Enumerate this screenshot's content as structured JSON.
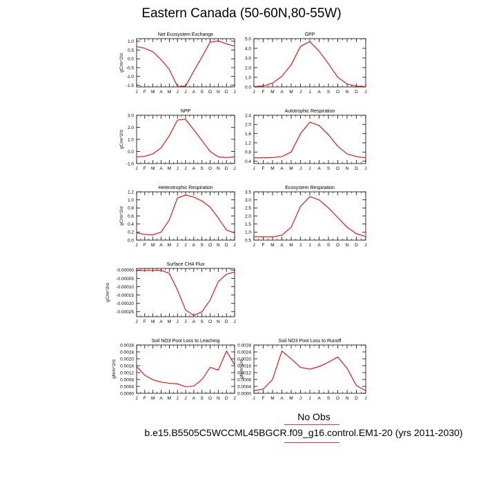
{
  "title": "Eastern Canada (50-60N,80-55W)",
  "legend": {
    "label": "No Obs",
    "line_color": "#e03030"
  },
  "case_label": "b.e15.B5505C5WCCML45BGCR.f09_g16.control.EM1-20 (yrs 2011-2030)",
  "colors": {
    "series": "#ee0000",
    "axis": "#000000"
  },
  "chart_data": [
    {
      "type": "line",
      "title": "Net Ecosystem Exchange",
      "ylabel": "gC/m^2/d",
      "categories": [
        "J",
        "F",
        "M",
        "A",
        "M",
        "J",
        "J",
        "A",
        "S",
        "O",
        "N",
        "D",
        "J"
      ],
      "ylim": [
        -1.6,
        1.15
      ],
      "yticks": [
        "1.0",
        "0.5",
        "0.0",
        "-0.5",
        "-1.0",
        "-1.5"
      ],
      "ytick_values": [
        1.0,
        0.5,
        0.0,
        -0.5,
        -1.0,
        -1.5
      ],
      "values": [
        0.7,
        0.6,
        0.4,
        -0.05,
        -0.6,
        -1.58,
        -1.55,
        -0.7,
        0.1,
        0.95,
        1.02,
        0.85,
        0.72
      ]
    },
    {
      "type": "line",
      "title": "GPP",
      "ylabel": "",
      "categories": [
        "J",
        "F",
        "M",
        "A",
        "M",
        "J",
        "J",
        "A",
        "S",
        "O",
        "N",
        "D",
        "J"
      ],
      "ylim": [
        0,
        5.0
      ],
      "yticks": [
        "5.0",
        "4.0",
        "3.0",
        "2.0",
        "1.0",
        "0.0"
      ],
      "ytick_values": [
        5.0,
        4.0,
        3.0,
        2.0,
        1.0,
        0.0
      ],
      "values": [
        0.02,
        0.1,
        0.4,
        1.1,
        2.3,
        4.2,
        4.7,
        3.7,
        2.4,
        1.0,
        0.3,
        0.08,
        0.03
      ]
    },
    {
      "type": "line",
      "title": "NPP",
      "ylabel": "gC/m^2/d",
      "categories": [
        "J",
        "F",
        "M",
        "A",
        "M",
        "J",
        "J",
        "A",
        "S",
        "O",
        "N",
        "D",
        "J"
      ],
      "ylim": [
        -1.0,
        3.0
      ],
      "yticks": [
        "3.0",
        "2.0",
        "1.0",
        "0.0",
        "-1.0"
      ],
      "ytick_values": [
        3.0,
        2.0,
        1.0,
        0.0,
        -1.0
      ],
      "values": [
        -0.45,
        -0.4,
        -0.2,
        0.3,
        1.3,
        2.6,
        2.65,
        1.8,
        0.9,
        0.0,
        -0.45,
        -0.5,
        -0.45
      ]
    },
    {
      "type": "line",
      "title": "Autotrophic Respiration",
      "ylabel": "",
      "categories": [
        "J",
        "F",
        "M",
        "A",
        "M",
        "J",
        "J",
        "A",
        "S",
        "O",
        "N",
        "D",
        "J"
      ],
      "ylim": [
        0.3,
        2.4
      ],
      "yticks": [
        "2.4",
        "2.0",
        "1.6",
        "1.2",
        "0.8",
        "0.4"
      ],
      "ytick_values": [
        2.4,
        2.0,
        1.6,
        1.2,
        0.8,
        0.4
      ],
      "values": [
        0.55,
        0.55,
        0.56,
        0.6,
        0.8,
        1.6,
        2.1,
        1.95,
        1.55,
        1.05,
        0.72,
        0.6,
        0.55
      ]
    },
    {
      "type": "line",
      "title": "Heterotrophic Respiration",
      "ylabel": "gC/m^2/d",
      "categories": [
        "J",
        "F",
        "M",
        "A",
        "M",
        "J",
        "J",
        "A",
        "S",
        "O",
        "N",
        "D",
        "J"
      ],
      "ylim": [
        0.0,
        1.2
      ],
      "yticks": [
        "1.2",
        "1.0",
        "0.8",
        "0.6",
        "0.4",
        "0.2",
        "0.0"
      ],
      "ytick_values": [
        1.2,
        1.0,
        0.8,
        0.6,
        0.4,
        0.2,
        0.0
      ],
      "values": [
        0.18,
        0.14,
        0.13,
        0.2,
        0.5,
        1.05,
        1.12,
        1.07,
        0.97,
        0.82,
        0.55,
        0.25,
        0.18
      ]
    },
    {
      "type": "line",
      "title": "Ecosystem Respiration",
      "ylabel": "",
      "categories": [
        "J",
        "F",
        "M",
        "A",
        "M",
        "J",
        "J",
        "A",
        "S",
        "O",
        "N",
        "D",
        "J"
      ],
      "ylim": [
        0.5,
        3.5
      ],
      "yticks": [
        "3.5",
        "3.0",
        "2.5",
        "2.0",
        "1.5",
        "1.0",
        "0.5"
      ],
      "ytick_values": [
        3.5,
        3.0,
        2.5,
        2.0,
        1.5,
        1.0,
        0.5
      ],
      "values": [
        0.72,
        0.7,
        0.7,
        0.8,
        1.3,
        2.6,
        3.2,
        3.0,
        2.5,
        1.9,
        1.3,
        0.9,
        0.72
      ]
    },
    {
      "type": "line",
      "title": "Surface CH4 Flux",
      "ylabel": "gC/m^2/d",
      "categories": [
        "J",
        "F",
        "M",
        "A",
        "M",
        "J",
        "J",
        "A",
        "S",
        "O",
        "N",
        "D",
        "J"
      ],
      "ylim": [
        -0.00028,
        1e-05
      ],
      "yticks": [
        "-0.00000",
        "-0.00005",
        "-0.00010",
        "-0.00015",
        "-0.00020",
        "-0.00025"
      ],
      "ytick_values": [
        0,
        -5e-05,
        -0.0001,
        -0.00015,
        -0.0002,
        -0.00025
      ],
      "values": [
        -2e-06,
        -2e-06,
        -2e-06,
        -1e-06,
        -2e-05,
        -0.00012,
        -0.00024,
        -0.000273,
        -0.00025,
        -0.00018,
        -7e-05,
        -2.5e-05,
        -1.2e-05
      ]
    },
    {
      "type": "line",
      "title": "Soil NO3 Pool Loss to Leaching",
      "ylabel": "gN/m^2/d",
      "categories": [
        "J",
        "F",
        "M",
        "A",
        "M",
        "J",
        "J",
        "A",
        "S",
        "O",
        "N",
        "D",
        "J"
      ],
      "ylim": [
        0.0,
        0.0028
      ],
      "yticks": [
        "0.0028",
        "0.0024",
        "0.0020",
        "0.0016",
        "0.0012",
        "0.0008",
        "0.0004",
        "0.0000"
      ],
      "ytick_values": [
        0.0028,
        0.0024,
        0.002,
        0.0016,
        0.0012,
        0.0008,
        0.0004,
        0.0
      ],
      "values": [
        0.00155,
        0.00105,
        0.00078,
        0.00065,
        0.00058,
        0.00055,
        0.00038,
        0.00042,
        0.0008,
        0.0015,
        0.00135,
        0.00245,
        0.00165
      ]
    },
    {
      "type": "line",
      "title": "Soil NO3 Pool Loss to Runoff",
      "ylabel": "gN/m^2/d",
      "categories": [
        "J",
        "F",
        "M",
        "A",
        "M",
        "J",
        "J",
        "A",
        "S",
        "O",
        "N",
        "D",
        "J"
      ],
      "ylim": [
        0.0,
        0.0028
      ],
      "yticks": [
        "0.0028",
        "0.0024",
        "0.0020",
        "0.0016",
        "0.0012",
        "0.0008",
        "0.0004",
        "0.0000"
      ],
      "ytick_values": [
        0.0028,
        0.0024,
        0.002,
        0.0016,
        0.0012,
        0.0008,
        0.0004,
        0.0
      ],
      "values": [
        0.00015,
        0.00025,
        0.0008,
        0.00245,
        0.002,
        0.0015,
        0.0014,
        0.00155,
        0.0018,
        0.0021,
        0.00145,
        0.00045,
        0.00015
      ]
    }
  ]
}
